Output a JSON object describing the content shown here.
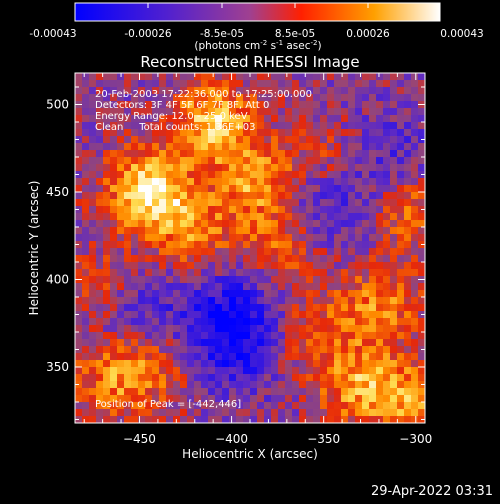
{
  "colorbar": {
    "tick_labels": [
      "-0.00043",
      "-0.00026",
      "-8.5e-05",
      "8.5e-05",
      "0.00026",
      "0.00043"
    ],
    "unit_main": "(photons cm",
    "unit_exp1": "-2",
    "unit_s": " s",
    "unit_exp2": "-1",
    "unit_asec": " asec",
    "unit_exp3": "-2",
    "unit_end": ")",
    "range": [
      -0.00043,
      0.00043
    ]
  },
  "chart_data": {
    "type": "heatmap",
    "title": "Reconstructed RHESSI Image",
    "xlabel": "Heliocentric X (arcsec)",
    "ylabel": "Heliocentric Y (arcsec)",
    "xlim": [
      -485,
      -295
    ],
    "ylim": [
      318,
      518
    ],
    "x_ticks": [
      -450,
      -400,
      -350,
      -300
    ],
    "y_ticks": [
      350,
      400,
      450,
      500
    ],
    "annotations": [
      "20-Feb-2003 17:22:36.000 to 17:25:00.000",
      "Detectors: 3F 4F 5F 6F 7F 8F, Att 0",
      "Energy Range: 12.0 - 25.0 keV",
      "Clean     Total counts: 1.36E+03"
    ],
    "peak_label": "Position of Peak = [-442,446]",
    "peak": [
      -442,
      446
    ],
    "colormap": [
      "#0000ff",
      "#8a3cd2",
      "#d07040",
      "#ff2000",
      "#ffa000",
      "#ffffff"
    ],
    "hotspots": [
      {
        "x": -445,
        "y": 450,
        "amp": 1.0
      },
      {
        "x": -410,
        "y": 490,
        "amp": 0.8
      },
      {
        "x": -385,
        "y": 455,
        "amp": 0.7
      },
      {
        "x": -420,
        "y": 425,
        "amp": 0.55
      },
      {
        "x": -375,
        "y": 415,
        "amp": 0.6
      },
      {
        "x": -320,
        "y": 385,
        "amp": 0.55
      },
      {
        "x": -305,
        "y": 440,
        "amp": 0.5
      },
      {
        "x": -345,
        "y": 470,
        "amp": 0.45
      },
      {
        "x": -470,
        "y": 395,
        "amp": 0.5
      },
      {
        "x": -465,
        "y": 345,
        "amp": 0.55
      },
      {
        "x": -440,
        "y": 350,
        "amp": 0.4
      },
      {
        "x": -330,
        "y": 340,
        "amp": 0.65
      },
      {
        "x": -300,
        "y": 330,
        "amp": 0.55
      },
      {
        "x": -360,
        "y": 370,
        "amp": 0.45
      }
    ],
    "coldspots": [
      {
        "x": -400,
        "y": 365,
        "amp": 0.9
      },
      {
        "x": -455,
        "y": 385,
        "amp": 0.6
      },
      {
        "x": -350,
        "y": 445,
        "amp": 0.55
      },
      {
        "x": -320,
        "y": 470,
        "amp": 0.5
      },
      {
        "x": -390,
        "y": 395,
        "amp": 0.5
      }
    ]
  },
  "footer": {
    "timestamp": "29-Apr-2022 03:31"
  }
}
